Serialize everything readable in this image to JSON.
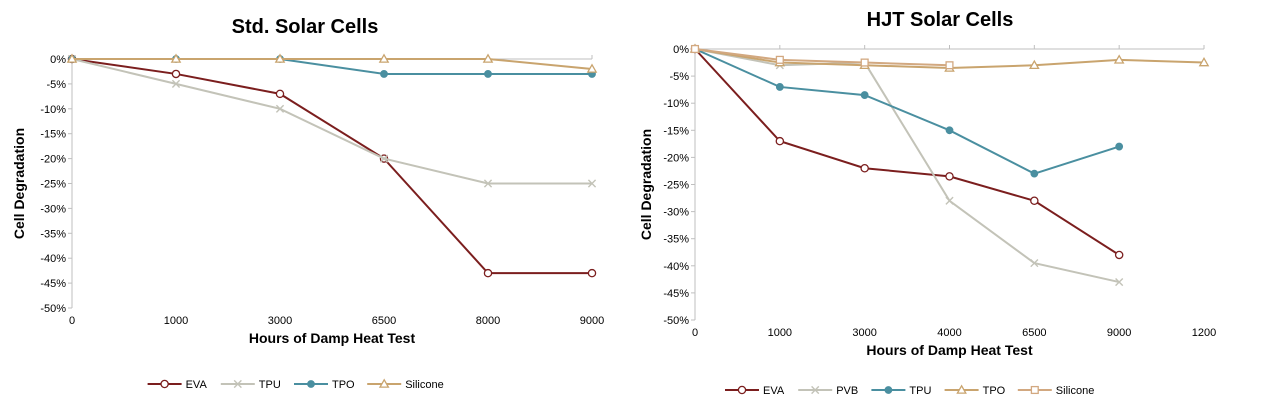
{
  "chart_data": [
    {
      "type": "line",
      "title": "Std. Solar Cells",
      "xlabel": "Hours of Damp Heat Test",
      "ylabel": "Cell Degradation",
      "categories": [
        "0",
        "1000",
        "3000",
        "6500",
        "8000",
        "9000"
      ],
      "ylim": [
        -50,
        0
      ],
      "yticks": [
        "0%",
        "-5%",
        "-10%",
        "-15%",
        "-20%",
        "-25%",
        "-30%",
        "-35%",
        "-40%",
        "-45%",
        "-50%"
      ],
      "grid": false,
      "legend": "bottom",
      "series": [
        {
          "name": "EVA",
          "color": "#7b1e1e",
          "marker": "circle-open",
          "values": [
            0,
            -3,
            -7,
            -20,
            -43,
            -43
          ]
        },
        {
          "name": "TPU",
          "color": "#c3c3b8",
          "marker": "x",
          "values": [
            0,
            -5,
            -10,
            -20,
            -25,
            -25
          ]
        },
        {
          "name": "TPO",
          "color": "#4a8fa0",
          "marker": "circle-filled",
          "values": [
            0,
            0,
            0,
            -3,
            -3,
            -3
          ]
        },
        {
          "name": "Silicone",
          "color": "#c9a46e",
          "marker": "triangle-open",
          "values": [
            0,
            0,
            0,
            0,
            0,
            -2
          ]
        }
      ]
    },
    {
      "type": "line",
      "title": "HJT Solar Cells",
      "xlabel": "Hours of Damp Heat Test",
      "ylabel": "Cell Degradation",
      "categories": [
        "0",
        "1000",
        "3000",
        "4000",
        "6500",
        "9000",
        "1200"
      ],
      "ylim": [
        -50,
        0
      ],
      "yticks": [
        "0%",
        "-5%",
        "-10%",
        "-15%",
        "-20%",
        "-25%",
        "-30%",
        "-35%",
        "-40%",
        "-45%",
        "-50%"
      ],
      "grid": false,
      "legend": "bottom",
      "series": [
        {
          "name": "EVA",
          "color": "#7b1e1e",
          "marker": "circle-open",
          "values": [
            0,
            -17,
            -22,
            -23.5,
            -28,
            -38,
            null
          ]
        },
        {
          "name": "PVB",
          "color": "#c3c3b8",
          "marker": "x",
          "values": [
            0,
            -3,
            -2.5,
            -28,
            -39.5,
            -43,
            null
          ]
        },
        {
          "name": "TPU",
          "color": "#4a8fa0",
          "marker": "circle-filled",
          "values": [
            0,
            -7,
            -8.5,
            -15,
            -23,
            -18,
            null
          ]
        },
        {
          "name": "TPO",
          "color": "#c9a46e",
          "marker": "triangle-open",
          "values": [
            0,
            -2.5,
            -3,
            -3.5,
            -3,
            -2,
            -2.5
          ]
        },
        {
          "name": "Silicone",
          "color": "#d2a880",
          "marker": "square-open",
          "values": [
            0,
            -2,
            -2.5,
            -3,
            null,
            null,
            null
          ]
        }
      ]
    }
  ]
}
